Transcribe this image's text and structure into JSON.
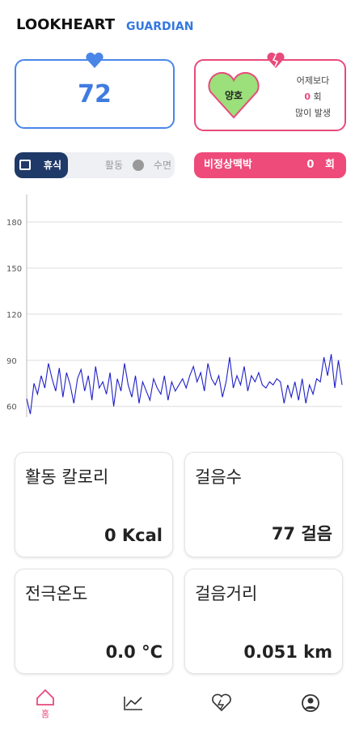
{
  "header": {
    "brand": "LOOKHEART",
    "sub": "GUARDIAN"
  },
  "heart_rate": {
    "value": "72"
  },
  "status": {
    "label": "양호",
    "line1": "어제보다",
    "count": "0",
    "unit": "회",
    "line3": "많이 발생"
  },
  "tabs": [
    "휴식",
    "활동",
    "수면"
  ],
  "abnormal": {
    "label": "비정상맥박",
    "count": "0",
    "unit": "회"
  },
  "chart_data": {
    "type": "line",
    "color": "#1f1fc8",
    "values": [
      65,
      55,
      75,
      68,
      80,
      72,
      88,
      78,
      70,
      85,
      66,
      82,
      74,
      62,
      78,
      84,
      70,
      80,
      64,
      86,
      72,
      76,
      68,
      82,
      60,
      78,
      70,
      88,
      74,
      66,
      80,
      62,
      76,
      70,
      64,
      78,
      72,
      68,
      80,
      64,
      76,
      70,
      74,
      78,
      72,
      80,
      86,
      76,
      82,
      70,
      88,
      78,
      74,
      80,
      66,
      76,
      92,
      72,
      80,
      74,
      86,
      70,
      80,
      76,
      82,
      74,
      72,
      76,
      74,
      78,
      76,
      62,
      74,
      66,
      76,
      64,
      78,
      62,
      74,
      68,
      78,
      76,
      92,
      80,
      94,
      72,
      90,
      74
    ],
    "ylim": [
      53,
      198
    ],
    "yticks": [
      60,
      90,
      120,
      150,
      180
    ],
    "grid": true
  },
  "cards": [
    {
      "title": "활동 칼로리",
      "value": "0 Kcal"
    },
    {
      "title": "걸음수",
      "value": "77 걸음"
    },
    {
      "title": "전극온도",
      "value": "0.0 °C"
    },
    {
      "title": "걸음거리",
      "value": "0.051 km"
    }
  ],
  "nav": {
    "home": "홈"
  }
}
